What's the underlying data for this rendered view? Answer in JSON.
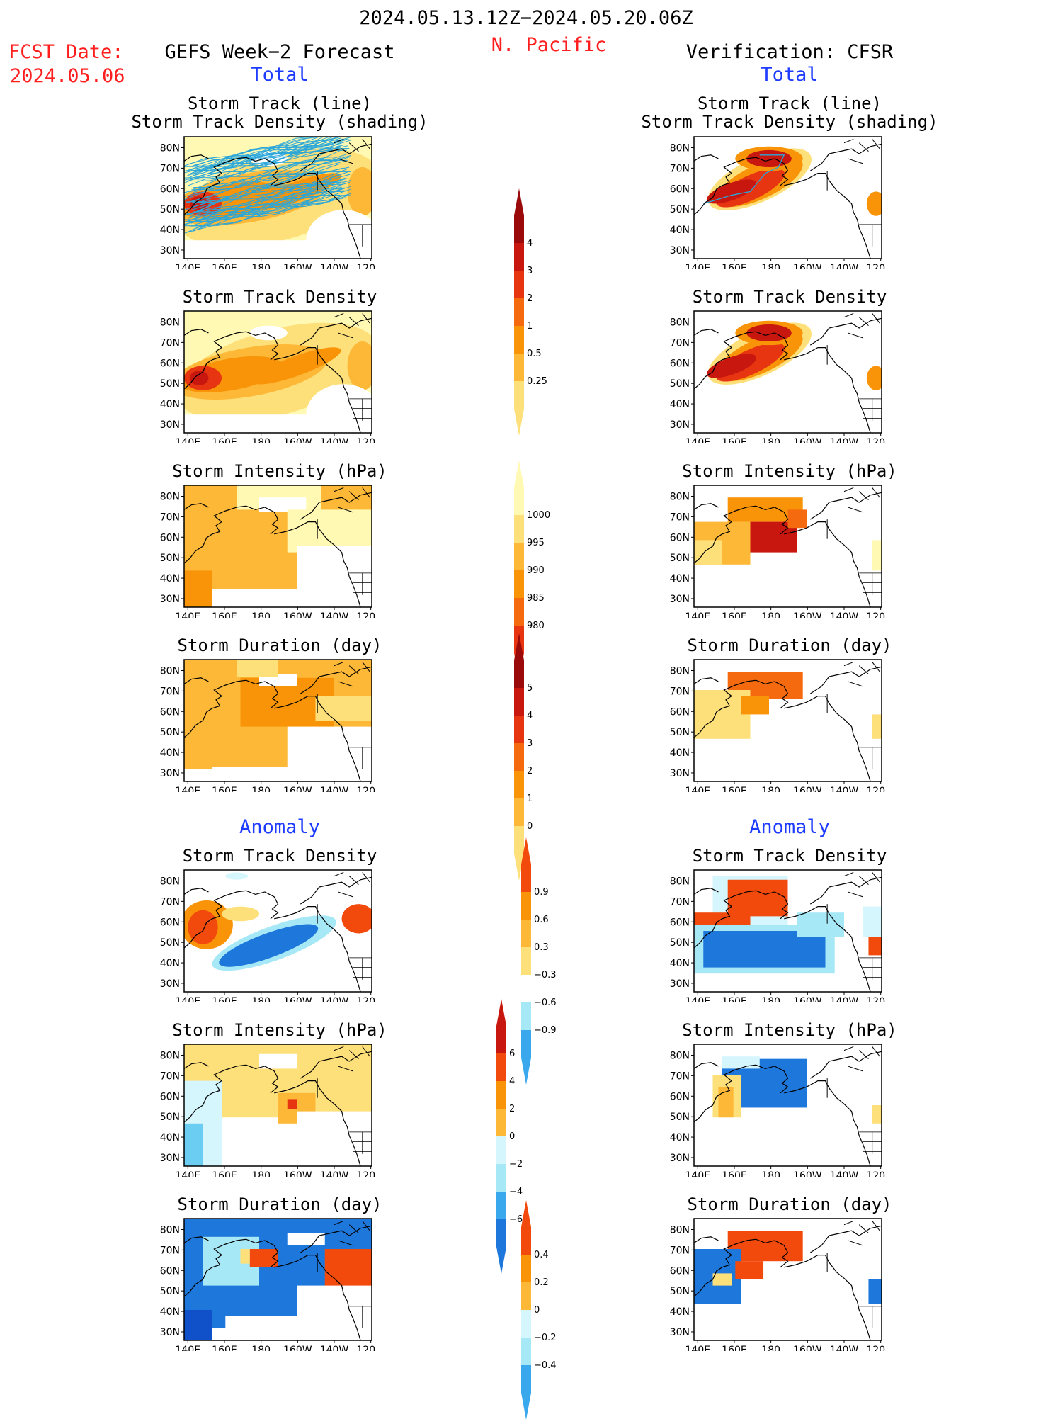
{
  "header": {
    "period": "2024.05.13.12Z−2024.05.20.06Z",
    "region": "N. Pacific",
    "fcst_label": "FCST Date:",
    "fcst_date": "2024.05.06",
    "left_title": "GEFS Week−2 Forecast",
    "right_title": "Verification: CFSR",
    "total_label": "Total",
    "anomaly_label": "Anomaly"
  },
  "panel_titles": {
    "track_line": "Storm Track (line)",
    "track_shading": "Storm Track Density (shading)",
    "density": "Storm Track Density",
    "intensity": "Storm Intensity (hPa)",
    "duration": "Storm Duration (day)"
  },
  "axes": {
    "lat_ticks": [
      "80N",
      "70N",
      "60N",
      "50N",
      "40N",
      "30N"
    ],
    "lon_ticks": [
      "140E",
      "160E",
      "180",
      "160W",
      "140W",
      "120W"
    ]
  },
  "colors": {
    "warm": [
      "#fff9b3",
      "#fee07a",
      "#fdb838",
      "#f99408",
      "#f56a0e",
      "#e73512",
      "#c8170f",
      "#9a0a0a"
    ],
    "cool": [
      "#d6f6fd",
      "#a7e8f7",
      "#6ccdf2",
      "#3aa8ec",
      "#1e78dc",
      "#1050c8"
    ],
    "anom_warm": [
      "#fee07a",
      "#fdb838",
      "#f99408",
      "#f24a0d"
    ],
    "track_lines": "#2aa6d9"
  },
  "colorbars": [
    {
      "id": "density_total",
      "labels": [
        "4",
        "3",
        "2",
        "1",
        "0.5",
        "0.25"
      ]
    },
    {
      "id": "intensity_total",
      "labels": [
        "1000",
        "995",
        "990",
        "985",
        "980"
      ]
    },
    {
      "id": "duration_total",
      "labels": [
        "5",
        "4",
        "3",
        "2",
        "1",
        "0"
      ]
    },
    {
      "id": "density_anom",
      "labels": [
        "0.9",
        "0.6",
        "0.3",
        "−0.3",
        "−0.6",
        "−0.9"
      ]
    },
    {
      "id": "intensity_anom",
      "labels": [
        "6",
        "4",
        "2",
        "0",
        "−2",
        "−4",
        "−6"
      ]
    },
    {
      "id": "duration_anom",
      "labels": [
        "0.4",
        "0.2",
        "0",
        "−0.2",
        "−0.4"
      ]
    }
  ]
}
